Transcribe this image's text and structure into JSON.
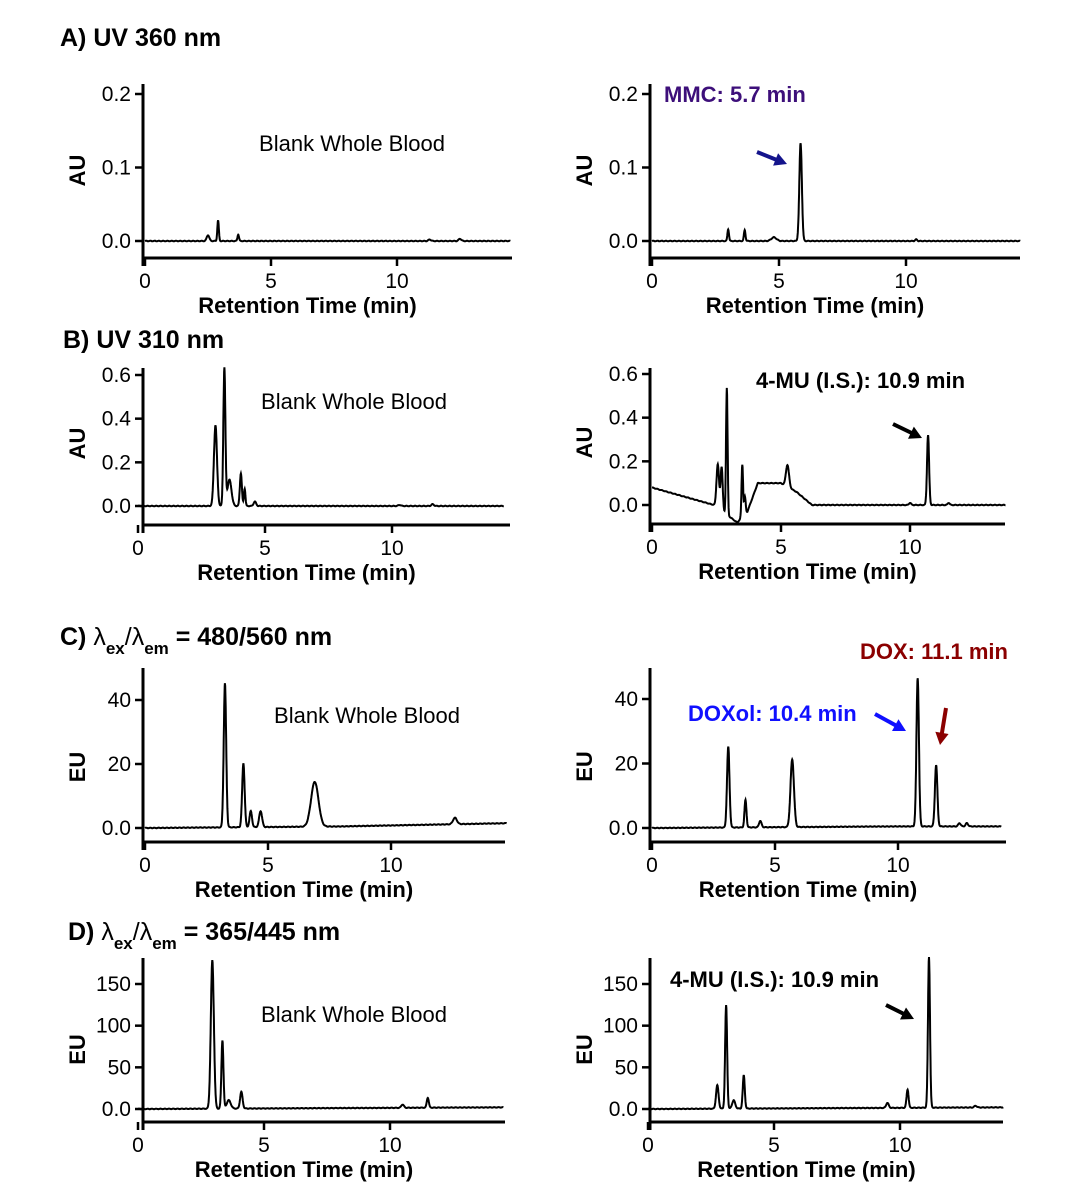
{
  "colors": {
    "trace": "#000000",
    "mmc": "#3d0f7a",
    "doxol": "#1010ff",
    "dox": "#8b0000",
    "arrow_mmc": "#14148c",
    "arrow_black": "#000000"
  },
  "sections": [
    {
      "label": "A) UV 360 nm"
    },
    {
      "label": "B) UV 310 nm"
    },
    {
      "label_parts": [
        "C) ",
        "λ",
        "ex",
        "/λ",
        "em",
        " = 480/560 nm"
      ]
    },
    {
      "label_parts": [
        "D) ",
        "λ",
        "ex",
        "/λ",
        "em",
        " = 365/445 nm"
      ]
    }
  ],
  "chart_data": [
    {
      "id": "A-left",
      "type": "line",
      "xlabel": "Retention Time (min)",
      "ylabel": "AU",
      "xticks": [
        "0",
        "5",
        "10"
      ],
      "yticks": [
        "0.0",
        "0.1",
        "0.2"
      ],
      "ytick_values": [
        0,
        0.1,
        0.2
      ],
      "xlim": [
        0,
        14.5
      ],
      "note": "Blank Whole Blood",
      "baseline": [
        [
          0,
          0
        ],
        [
          14.5,
          0
        ]
      ],
      "peaks": [
        [
          2.5,
          0.008,
          0.05
        ],
        [
          2.9,
          0.028,
          0.03
        ],
        [
          3.7,
          0.009,
          0.03
        ],
        [
          11.3,
          0.002,
          0.05
        ],
        [
          12.5,
          0.003,
          0.05
        ]
      ]
    },
    {
      "id": "A-right",
      "type": "line",
      "xlabel": "Retention Time (min)",
      "ylabel": "AU",
      "xticks": [
        "0",
        "5",
        "10"
      ],
      "yticks": [
        "0.0",
        "0.1",
        "0.2"
      ],
      "ytick_values": [
        0,
        0.1,
        0.2
      ],
      "xlim": [
        0,
        14.5
      ],
      "annotation": "MMC: 5.7 min",
      "baseline": [
        [
          0,
          0
        ],
        [
          14.5,
          0
        ]
      ],
      "peaks": [
        [
          3.0,
          0.016,
          0.03
        ],
        [
          3.65,
          0.015,
          0.03
        ],
        [
          4.8,
          0.005,
          0.1
        ],
        [
          5.85,
          0.133,
          0.05
        ],
        [
          10.4,
          0.002,
          0.04
        ]
      ]
    },
    {
      "id": "B-left",
      "type": "line",
      "xlabel": "Retention Time (min)",
      "ylabel": "AU",
      "xticks": [
        "0",
        "5",
        "10"
      ],
      "yticks": [
        "0.0",
        "0.2",
        "0.4",
        "0.6"
      ],
      "ytick_values": [
        0,
        0.2,
        0.4,
        0.6
      ],
      "xlim": [
        0,
        14.4
      ],
      "note": "Blank Whole Blood",
      "baseline": [
        [
          0,
          0
        ],
        [
          14.4,
          0
        ]
      ],
      "peaks": [
        [
          3.05,
          0.37,
          0.06
        ],
        [
          3.4,
          0.63,
          0.04
        ],
        [
          3.6,
          0.12,
          0.08
        ],
        [
          4.05,
          0.15,
          0.04
        ],
        [
          4.2,
          0.08,
          0.03
        ],
        [
          4.6,
          0.02,
          0.05
        ],
        [
          10.3,
          0.005,
          0.05
        ],
        [
          11.6,
          0.008,
          0.05
        ]
      ]
    },
    {
      "id": "B-right",
      "type": "line",
      "xlabel": "Retention Time (min)",
      "ylabel": "AU",
      "xticks": [
        "0",
        "5",
        "10"
      ],
      "yticks": [
        "0.0",
        "0.2",
        "0.4",
        "0.6"
      ],
      "ytick_values": [
        0,
        0.2,
        0.4,
        0.6
      ],
      "xlim": [
        0,
        13.7
      ],
      "annotation": "4-MU (I.S.): 10.9 min",
      "baseline": [
        [
          0,
          0.08
        ],
        [
          2.4,
          0.0
        ],
        [
          3.3,
          -0.08
        ],
        [
          3.7,
          -0.03
        ],
        [
          4.1,
          0.1
        ],
        [
          5.0,
          0.1
        ],
        [
          5.6,
          0.06
        ],
        [
          6.2,
          0.0
        ],
        [
          13.7,
          0.0
        ]
      ],
      "peaks": [
        [
          2.55,
          0.2,
          0.05
        ],
        [
          2.7,
          0.2,
          0.04
        ],
        [
          2.9,
          0.58,
          0.03
        ],
        [
          3.5,
          0.24,
          0.03
        ],
        [
          3.6,
          0.08,
          0.03
        ],
        [
          5.25,
          0.1,
          0.06
        ],
        [
          10.0,
          0.01,
          0.04
        ],
        [
          10.7,
          0.32,
          0.04
        ],
        [
          11.5,
          0.01,
          0.04
        ]
      ]
    },
    {
      "id": "C-left",
      "type": "line",
      "xlabel": "Retention Time (min)",
      "ylabel": "EU",
      "xticks": [
        "0",
        "5",
        "10"
      ],
      "yticks": [
        "0.0",
        "20",
        "40"
      ],
      "ytick_values": [
        0,
        20,
        40
      ],
      "xlim": [
        0,
        14.7
      ],
      "note": "Blank Whole Blood",
      "baseline": [
        [
          0,
          0
        ],
        [
          8,
          0.5
        ],
        [
          14.7,
          1.5
        ]
      ],
      "peaks": [
        [
          3.25,
          45,
          0.05
        ],
        [
          4.0,
          20,
          0.05
        ],
        [
          4.3,
          5,
          0.05
        ],
        [
          4.7,
          5,
          0.06
        ],
        [
          6.9,
          14,
          0.15
        ],
        [
          12.6,
          2,
          0.08
        ]
      ]
    },
    {
      "id": "C-right",
      "type": "line",
      "xlabel": "Retention Time (min)",
      "ylabel": "EU",
      "xticks": [
        "0",
        "5",
        "10"
      ],
      "yticks": [
        "0.0",
        "20",
        "40"
      ],
      "ytick_values": [
        0,
        20,
        40
      ],
      "xlim": [
        0,
        14.2
      ],
      "annotations": [
        "DOXol: 10.4 min",
        "DOX: 11.1 min"
      ],
      "baseline": [
        [
          0,
          0
        ],
        [
          10,
          0.5
        ],
        [
          14.2,
          0.5
        ]
      ],
      "peaks": [
        [
          3.1,
          25,
          0.05
        ],
        [
          3.8,
          8.5,
          0.04
        ],
        [
          4.4,
          2,
          0.05
        ],
        [
          5.7,
          21,
          0.07
        ],
        [
          10.8,
          46,
          0.05
        ],
        [
          11.55,
          19,
          0.05
        ],
        [
          12.5,
          1,
          0.05
        ],
        [
          12.8,
          1,
          0.05
        ]
      ]
    },
    {
      "id": "D-left",
      "type": "line",
      "xlabel": "Retention Time (min)",
      "ylabel": "EU",
      "xticks": [
        "0",
        "5",
        "10"
      ],
      "yticks": [
        "0.0",
        "50",
        "100",
        "150"
      ],
      "ytick_values": [
        0,
        50,
        100,
        150
      ],
      "xlim": [
        0,
        14.5
      ],
      "note": "Blank Whole Blood",
      "baseline": [
        [
          0,
          0
        ],
        [
          14.5,
          2
        ]
      ],
      "peaks": [
        [
          2.95,
          178,
          0.06
        ],
        [
          3.35,
          82,
          0.04
        ],
        [
          3.6,
          10,
          0.08
        ],
        [
          4.1,
          20,
          0.05
        ],
        [
          10.5,
          4,
          0.05
        ],
        [
          11.5,
          12,
          0.04
        ]
      ]
    },
    {
      "id": "D-right",
      "type": "line",
      "xlabel": "Retention Time (min)",
      "ylabel": "EU",
      "xticks": [
        "0",
        "5",
        "10"
      ],
      "yticks": [
        "0.0",
        "50",
        "100",
        "150"
      ],
      "ytick_values": [
        0,
        50,
        100,
        150
      ],
      "xlim": [
        0,
        14.1
      ],
      "annotation": "4-MU (I.S.): 10.9 min",
      "baseline": [
        [
          0,
          0
        ],
        [
          14.1,
          2
        ]
      ],
      "peaks": [
        [
          2.75,
          28,
          0.05
        ],
        [
          3.1,
          124,
          0.04
        ],
        [
          3.4,
          10,
          0.06
        ],
        [
          3.8,
          40,
          0.04
        ],
        [
          9.5,
          6,
          0.05
        ],
        [
          10.3,
          22,
          0.04
        ],
        [
          11.15,
          181,
          0.04
        ],
        [
          13,
          2,
          0.05
        ]
      ]
    }
  ]
}
